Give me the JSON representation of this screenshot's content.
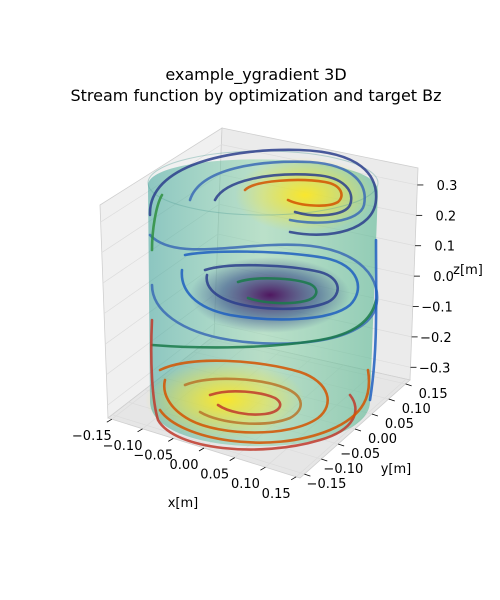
{
  "chart_data": {
    "type": "3d-surface-contour",
    "title": "example_ygradient 3D",
    "subtitle": "Stream function by optimization and target Bz",
    "xlabel": "x[m]",
    "ylabel": "y[m]",
    "zlabel": "z[m]",
    "x_ticks": [
      "−0.15",
      "−0.10",
      "−0.05",
      "0.00",
      "0.05",
      "0.10",
      "0.15"
    ],
    "y_ticks": [
      "−0.15",
      "−0.10",
      "−0.05",
      "0.00",
      "0.05",
      "0.10",
      "0.15"
    ],
    "z_ticks": [
      "−0.3",
      "−0.2",
      "−0.1",
      "0.0",
      "0.1",
      "0.2",
      "0.3"
    ],
    "xlim": [
      -0.15,
      0.15
    ],
    "ylim": [
      -0.15,
      0.15
    ],
    "zlim": [
      -0.38,
      0.38
    ],
    "grid": true,
    "surface": {
      "shape": "cylinder",
      "colormap": "viridis",
      "alpha": 0.45
    },
    "contour_colors": [
      "#2c3e8c",
      "#3b6bb5",
      "#1f5fbf",
      "#1a7a4a",
      "#2f8f3f",
      "#c0392b",
      "#d35400",
      "#b8742a"
    ]
  }
}
